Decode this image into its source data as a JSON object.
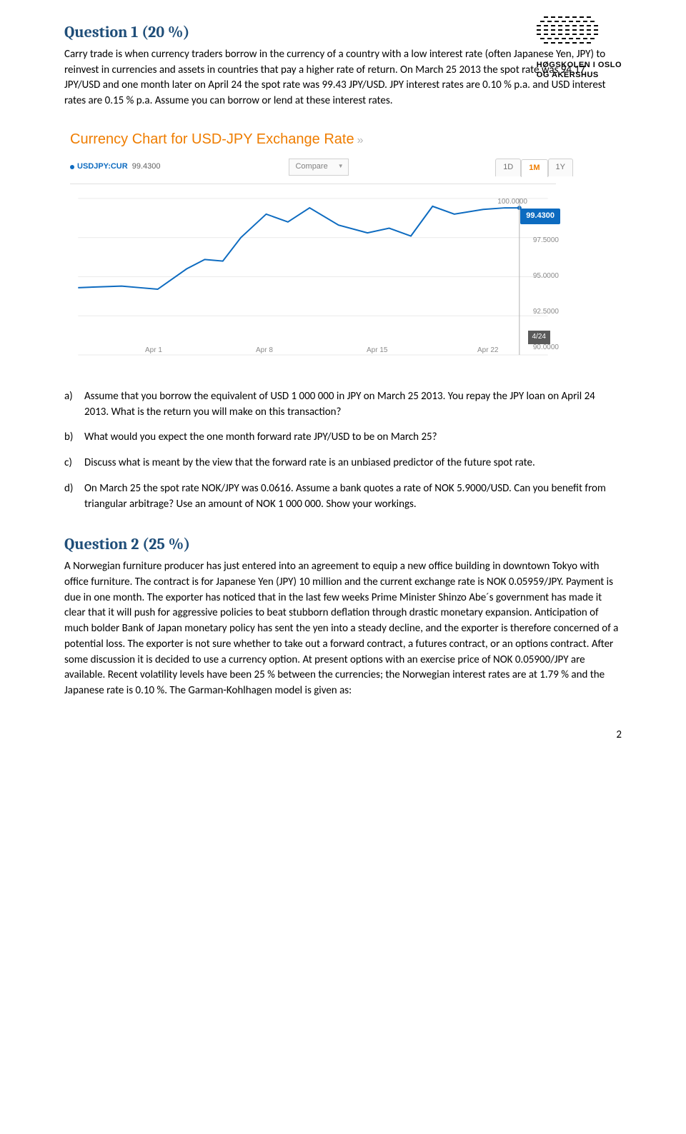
{
  "logo": {
    "line1": "HØGSKOLEN I OSLO",
    "line2": "OG AKERSHUS"
  },
  "question1": {
    "title": "Question 1 (20 %)",
    "body": "Carry trade is when currency traders borrow in the currency of a country with a low interest rate (often Japanese Yen, JPY) to reinvest in currencies and assets in countries that pay a higher rate of return. On March 25 2013 the spot rate was 94.17 JPY/USD and one month later on April 24 the spot rate was 99.43 JPY/USD. JPY interest rates are 0.10 % p.a. and USD interest rates are 0.15 % p.a. Assume you can borrow or lend at these interest rates.",
    "sub_a": "Assume that you borrow the equivalent of USD 1 000 000 in JPY on March 25 2013. You repay the JPY loan on April 24 2013. What is the return you will make on this transaction?",
    "sub_b": "What would you expect the one month forward rate JPY/USD to be on March 25?",
    "sub_c": "Discuss what is meant by the view that the forward rate is an unbiased predictor of the future spot rate.",
    "sub_d": "On March 25 the spot rate NOK/JPY was 0.0616. Assume a bank quotes a rate of NOK 5.9000/USD. Can you benefit from triangular arbitrage? Use an amount of NOK 1 000 000. Show your workings."
  },
  "chart": {
    "title": "Currency Chart for USD-JPY Exchange Rate",
    "ticker_symbol": "USDJPY:CUR",
    "ticker_value": "99.4300",
    "compare_label": "Compare",
    "tabs": {
      "d1": "1D",
      "m1": "1M",
      "y1": "1Y"
    },
    "callout_value": "99.4300",
    "date_flag": "4/24",
    "ylabels": {
      "y100": "100.0000",
      "y975": "97.5000",
      "y95": "95.0000",
      "y925": "92.5000",
      "y90": "90.0000"
    },
    "xlabels": {
      "apr1": "Apr 1",
      "apr8": "Apr 8",
      "apr15": "Apr 15",
      "apr22": "Apr 22"
    },
    "line_color": "#0d6bc0",
    "grid_color": "#eaeaea",
    "series": [
      {
        "x": 0,
        "y": 94.3
      },
      {
        "x": 60,
        "y": 94.4
      },
      {
        "x": 85,
        "y": 94.3
      },
      {
        "x": 110,
        "y": 94.2
      },
      {
        "x": 150,
        "y": 95.5
      },
      {
        "x": 175,
        "y": 96.1
      },
      {
        "x": 200,
        "y": 96.0
      },
      {
        "x": 225,
        "y": 97.5
      },
      {
        "x": 260,
        "y": 99.0
      },
      {
        "x": 290,
        "y": 98.5
      },
      {
        "x": 320,
        "y": 99.4
      },
      {
        "x": 360,
        "y": 98.3
      },
      {
        "x": 400,
        "y": 97.8
      },
      {
        "x": 430,
        "y": 98.1
      },
      {
        "x": 460,
        "y": 97.6
      },
      {
        "x": 490,
        "y": 99.5
      },
      {
        "x": 520,
        "y": 99.0
      },
      {
        "x": 560,
        "y": 99.3
      },
      {
        "x": 590,
        "y": 99.4
      },
      {
        "x": 610,
        "y": 99.4
      }
    ],
    "xmax": 610,
    "ymin": 90.0,
    "ymax": 100.0
  },
  "question2": {
    "title": "Question 2 (25 %)",
    "body": "A Norwegian furniture producer has just entered into an agreement to equip a new office building in downtown Tokyo with office furniture. The contract is for Japanese Yen (JPY) 10 million and the current exchange rate is NOK 0.05959/JPY. Payment is due in one month. The exporter has noticed that in the last few weeks Prime Minister Shinzo Abe´s government has made it clear that it will push for aggressive policies to beat stubborn deflation through drastic monetary expansion. Anticipation of much bolder Bank of Japan monetary policy has sent the yen into a steady decline, and the exporter is therefore concerned of a potential loss. The exporter is not sure whether to take out a forward contract, a futures contract, or an options contract. After some discussion it is decided to use a currency option. At present options with an exercise price of NOK 0.05900/JPY are available. Recent volatility levels have been 25 % between the currencies; the Norwegian interest rates are at 1.79 % and the Japanese rate is 0.10 %. The Garman-Kohlhagen model is given as:"
  },
  "page_number": "2"
}
